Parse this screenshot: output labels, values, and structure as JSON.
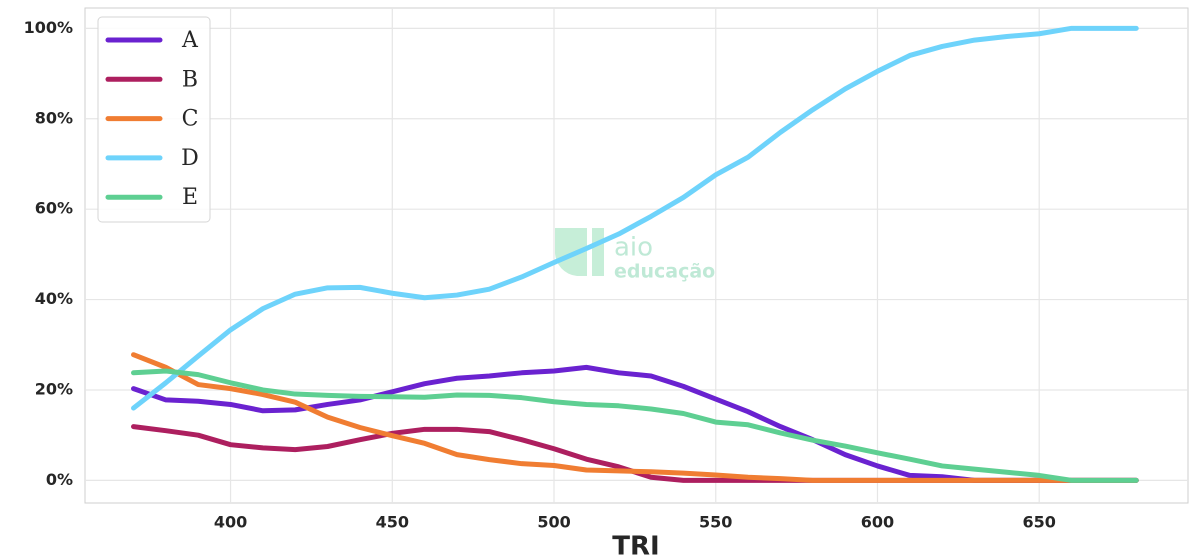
{
  "chart_data": {
    "type": "line",
    "x_label": "TRI",
    "x": [
      370,
      380,
      390,
      400,
      410,
      420,
      430,
      440,
      450,
      460,
      470,
      480,
      490,
      500,
      510,
      520,
      530,
      540,
      550,
      560,
      570,
      580,
      590,
      600,
      610,
      620,
      630,
      640,
      650,
      660,
      670,
      680
    ],
    "series": [
      {
        "name": "A",
        "color": "#6a22d0",
        "values": [
          20.3,
          17.8,
          17.5,
          16.8,
          15.4,
          15.6,
          16.8,
          17.8,
          19.6,
          21.4,
          22.6,
          23.1,
          23.8,
          24.2,
          25,
          23.8,
          23.1,
          20.8,
          18,
          15.2,
          11.9,
          9,
          5.7,
          3.2,
          1.1,
          0.8,
          0,
          0,
          0,
          0,
          0,
          0
        ]
      },
      {
        "name": "B",
        "color": "#ad1f5f",
        "values": [
          11.9,
          11,
          10,
          7.9,
          7.2,
          6.8,
          7.5,
          9,
          10.4,
          11.3,
          11.3,
          10.8,
          9,
          7,
          4.7,
          3,
          0.7,
          0,
          0,
          0,
          0,
          0,
          0,
          0,
          0,
          0,
          0,
          0,
          0,
          0,
          0,
          0
        ]
      },
      {
        "name": "C",
        "color": "#f07d32",
        "values": [
          27.8,
          25,
          21.2,
          20.3,
          19,
          17.3,
          14,
          11.7,
          9.9,
          8.2,
          5.7,
          4.6,
          3.7,
          3.3,
          2.3,
          2.1,
          1.9,
          1.6,
          1.2,
          0.7,
          0.4,
          0,
          0,
          0,
          0,
          0,
          0,
          0,
          0,
          0,
          0,
          0
        ]
      },
      {
        "name": "D",
        "color": "#6ed3fb",
        "values": [
          16,
          21.6,
          27.5,
          33.3,
          38,
          41.2,
          42.6,
          42.7,
          41.4,
          40.4,
          41,
          42.3,
          45,
          48.2,
          51.3,
          54.5,
          58.4,
          62.6,
          67.6,
          71.5,
          77,
          82,
          86.6,
          90.5,
          94,
          96,
          97.4,
          98.2,
          98.8,
          100,
          100,
          100
        ]
      },
      {
        "name": "E",
        "color": "#5ecf92",
        "values": [
          23.8,
          24.2,
          23.4,
          21.6,
          20,
          19.1,
          18.8,
          18.6,
          18.5,
          18.4,
          18.9,
          18.8,
          18.3,
          17.4,
          16.8,
          16.5,
          15.8,
          14.8,
          12.9,
          12.3,
          10.5,
          8.9,
          7.6,
          6.1,
          4.7,
          3.2,
          2.5,
          1.8,
          1.1,
          0,
          0,
          0
        ]
      }
    ],
    "xlim": [
      355,
      696
    ],
    "xticks": [
      400,
      450,
      500,
      550,
      600,
      650
    ],
    "ylim": [
      -5,
      104.5
    ],
    "yticks": [
      {
        "value": 0,
        "label": "0%"
      },
      {
        "value": 20,
        "label": "20%"
      },
      {
        "value": 40,
        "label": "40%"
      },
      {
        "value": 60,
        "label": "60%"
      },
      {
        "value": 80,
        "label": "80%"
      },
      {
        "value": 100,
        "label": "100%"
      }
    ],
    "grid": true,
    "legend": "upper left",
    "watermark": {
      "brand": "aio",
      "tagline": "educação"
    }
  }
}
